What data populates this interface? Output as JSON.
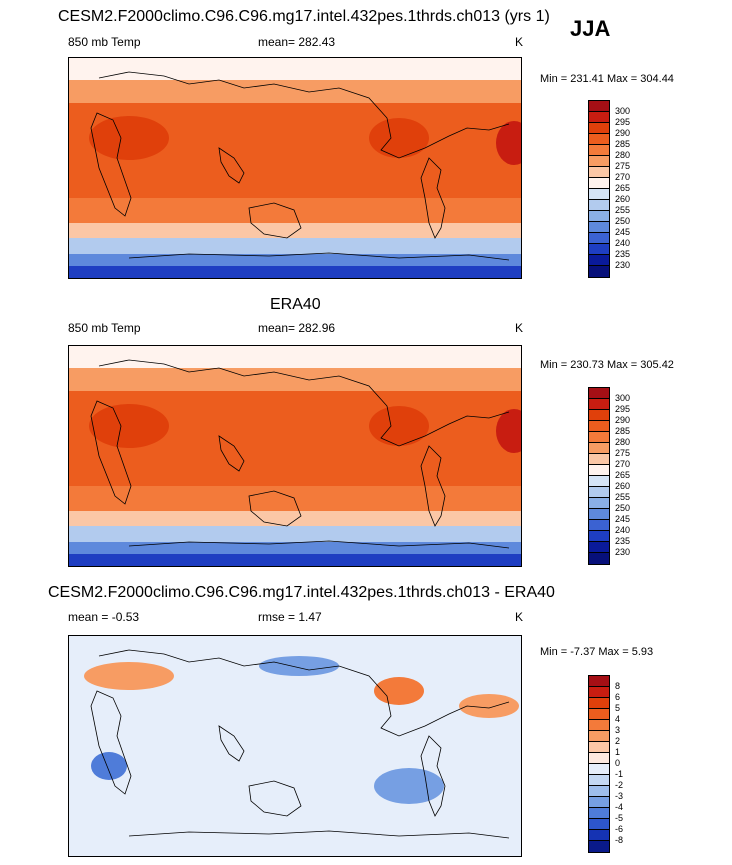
{
  "season": "JJA",
  "panels": [
    {
      "title": "CESM2.F2000climo.C96.C96.mg17.intel.432pes.1thrds.ch013 (yrs 1)",
      "left_label": "850 mb Temp",
      "center_label": "mean= 282.43",
      "right_label": "K",
      "minmax": "Min = 231.41 Max = 304.44",
      "levels": [
        "300",
        "295",
        "290",
        "285",
        "280",
        "275",
        "270",
        "265",
        "260",
        "255",
        "250",
        "245",
        "240",
        "235",
        "230"
      ],
      "colors": [
        "#a50f15",
        "#c81d11",
        "#e0400b",
        "#ec5d1e",
        "#f37a3a",
        "#f79c63",
        "#fbc7a6",
        "#fff3ee",
        "#d5e4f6",
        "#b2cbee",
        "#8aafe6",
        "#5e89dc",
        "#3b62d2",
        "#1e3ec2",
        "#0a1a9a",
        "#07107a"
      ]
    },
    {
      "title": "ERA40",
      "left_label": "850 mb Temp",
      "center_label": "mean= 282.96",
      "right_label": "K",
      "minmax": "Min = 230.73 Max = 305.42",
      "levels": [
        "300",
        "295",
        "290",
        "285",
        "280",
        "275",
        "270",
        "265",
        "260",
        "255",
        "250",
        "245",
        "240",
        "235",
        "230"
      ],
      "colors": [
        "#a50f15",
        "#c81d11",
        "#e0400b",
        "#ec5d1e",
        "#f37a3a",
        "#f79c63",
        "#fbc7a6",
        "#fff3ee",
        "#d5e4f6",
        "#b2cbee",
        "#8aafe6",
        "#5e89dc",
        "#3b62d2",
        "#1e3ec2",
        "#0a1a9a",
        "#07107a"
      ]
    },
    {
      "title": "CESM2.F2000climo.C96.C96.mg17.intel.432pes.1thrds.ch013 - ERA40",
      "left_label": "mean =  -0.53",
      "center_label": "rmse =   1.47",
      "right_label": "K",
      "minmax": "Min =  -7.37 Max =   5.93",
      "levels": [
        "8",
        "6",
        "5",
        "4",
        "3",
        "2",
        "1",
        "0",
        "-1",
        "-2",
        "-3",
        "-4",
        "-5",
        "-6",
        "-8"
      ],
      "colors": [
        "#a50f15",
        "#c81d11",
        "#e0400b",
        "#ec5d1e",
        "#f37a3a",
        "#f79c63",
        "#fbc7a6",
        "#fde9df",
        "#e6eefa",
        "#c4d8f3",
        "#9ebeec",
        "#769fe3",
        "#4f7cd9",
        "#2d56cc",
        "#1533b3",
        "#0a1a8a"
      ]
    }
  ]
}
